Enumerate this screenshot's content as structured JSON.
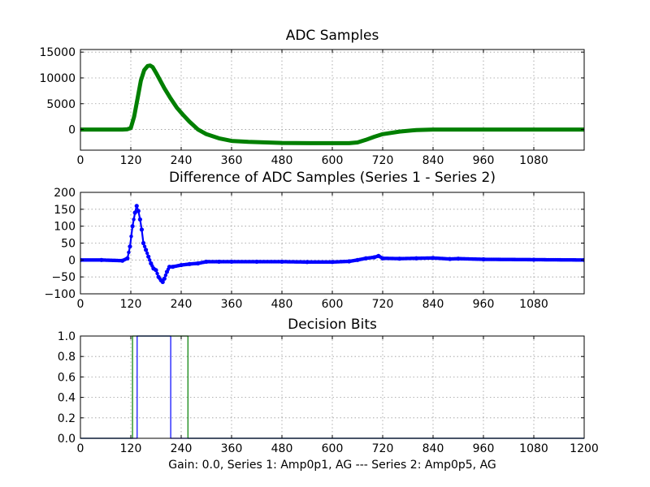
{
  "caption": "Gain: 0.0, Series 1: Amp0p1, AG --- Series 2: Amp0p5, AG",
  "colors": {
    "green": "#007f00",
    "blue": "#0000ff"
  },
  "chart_data": [
    {
      "type": "scatter",
      "title": "ADC Samples",
      "xlim": [
        0,
        1200
      ],
      "ylim": [
        -4000,
        15500
      ],
      "xticks": [
        0,
        120,
        240,
        360,
        480,
        600,
        720,
        840,
        960,
        1080
      ],
      "xtick_labels": [
        "0",
        "120",
        "240",
        "360",
        "480",
        "600",
        "720",
        "840",
        "960",
        "1080"
      ],
      "yticks": [
        0,
        5000,
        10000,
        15000
      ],
      "ytick_labels": [
        "0",
        "5000",
        "10000",
        "15000"
      ],
      "grid": true,
      "series": [
        {
          "color": "#007f00",
          "x": [
            0,
            100,
            112,
            120,
            128,
            136,
            144,
            152,
            160,
            166,
            172,
            180,
            190,
            200,
            215,
            230,
            245,
            260,
            280,
            300,
            330,
            360,
            400,
            480,
            560,
            640,
            660,
            680,
            700,
            720,
            760,
            800,
            840,
            960,
            1200
          ],
          "y": [
            0,
            0,
            50,
            300,
            2500,
            6000,
            9500,
            11500,
            12300,
            12400,
            12100,
            11000,
            9500,
            8000,
            6000,
            4200,
            2800,
            1500,
            0,
            -900,
            -1700,
            -2200,
            -2400,
            -2600,
            -2650,
            -2650,
            -2500,
            -2000,
            -1400,
            -900,
            -400,
            -100,
            0,
            0,
            0
          ]
        }
      ]
    },
    {
      "type": "line",
      "title": "Difference of ADC Samples (Series 1 - Series 2)",
      "xlim": [
        0,
        1200
      ],
      "ylim": [
        -100,
        200
      ],
      "xticks": [
        0,
        120,
        240,
        360,
        480,
        600,
        720,
        840,
        960,
        1080
      ],
      "xtick_labels": [
        "0",
        "120",
        "240",
        "360",
        "480",
        "600",
        "720",
        "840",
        "960",
        "1080"
      ],
      "yticks": [
        -100,
        -50,
        0,
        50,
        100,
        150,
        200
      ],
      "ytick_labels": [
        "−100",
        "−50",
        "0",
        "50",
        "100",
        "150",
        "200"
      ],
      "grid": true,
      "series": [
        {
          "color": "#0000ff",
          "x": [
            0,
            50,
            100,
            112,
            118,
            124,
            130,
            134,
            138,
            142,
            146,
            150,
            156,
            162,
            168,
            174,
            180,
            186,
            192,
            196,
            200,
            206,
            212,
            220,
            240,
            260,
            280,
            300,
            330,
            360,
            420,
            480,
            540,
            600,
            640,
            660,
            680,
            700,
            710,
            720,
            760,
            800,
            840,
            880,
            900,
            960,
            1080,
            1200
          ],
          "y": [
            0,
            0,
            -2,
            5,
            40,
            100,
            140,
            160,
            145,
            120,
            90,
            50,
            30,
            10,
            -10,
            -25,
            -30,
            -50,
            -60,
            -65,
            -55,
            -35,
            -20,
            -20,
            -15,
            -12,
            -10,
            -5,
            -5,
            -5,
            -5,
            -5,
            -6,
            -6,
            -4,
            0,
            5,
            8,
            12,
            5,
            4,
            5,
            6,
            3,
            4,
            2,
            1,
            0
          ]
        }
      ]
    },
    {
      "type": "line",
      "title": "Decision Bits",
      "xlim": [
        0,
        1200
      ],
      "ylim": [
        0,
        1
      ],
      "xticks": [
        0,
        120,
        240,
        360,
        480,
        600,
        720,
        840,
        960,
        1080,
        1200
      ],
      "xtick_labels": [
        "0",
        "120",
        "240",
        "360",
        "480",
        "600",
        "720",
        "840",
        "960",
        "1080",
        "1200"
      ],
      "yticks": [
        0,
        0.2,
        0.4,
        0.6,
        0.8,
        1.0
      ],
      "ytick_labels": [
        "0.0",
        "0.2",
        "0.4",
        "0.6",
        "0.8",
        "1.0"
      ],
      "grid": true,
      "series": [
        {
          "color": "#007f00",
          "x": [
            0,
            124,
            124,
            256,
            256,
            1200
          ],
          "y": [
            0,
            0,
            1,
            1,
            0,
            0
          ]
        },
        {
          "color": "#0000ff",
          "x": [
            0,
            135,
            135,
            215,
            215,
            1200
          ],
          "y": [
            0,
            0,
            1,
            1,
            0,
            0
          ]
        }
      ]
    }
  ]
}
